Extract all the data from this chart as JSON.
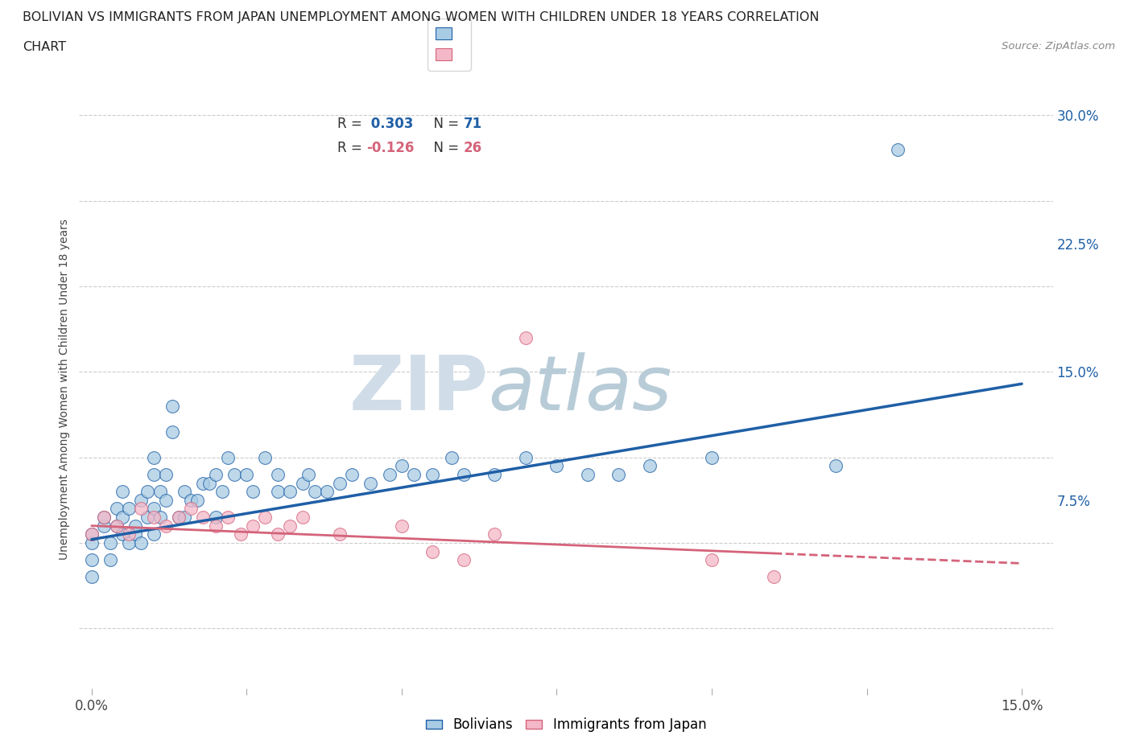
{
  "title_line1": "BOLIVIAN VS IMMIGRANTS FROM JAPAN UNEMPLOYMENT AMONG WOMEN WITH CHILDREN UNDER 18 YEARS CORRELATION",
  "title_line2": "CHART",
  "source": "Source: ZipAtlas.com",
  "ylabel": "Unemployment Among Women with Children Under 18 years",
  "xlim": [
    -0.002,
    0.155
  ],
  "ylim": [
    -0.035,
    0.315
  ],
  "xtick_positions": [
    0.0,
    0.025,
    0.05,
    0.075,
    0.1,
    0.125,
    0.15
  ],
  "xticklabels": [
    "0.0%",
    "",
    "",
    "",
    "",
    "",
    "15.0%"
  ],
  "ytick_positions": [
    0.0,
    0.075,
    0.15,
    0.225,
    0.3
  ],
  "ytick_labels": [
    "",
    "7.5%",
    "15.0%",
    "22.5%",
    "30.0%"
  ],
  "bolivians_R": 0.303,
  "bolivians_N": 71,
  "japan_R": -0.126,
  "japan_N": 26,
  "blue_color": "#a8cce4",
  "blue_line_color": "#1f5fa6",
  "pink_color": "#f4b8c8",
  "pink_line_color": "#d4637a",
  "watermark_zip": "ZIP",
  "watermark_atlas": "atlas",
  "grid_color": "#cccccc",
  "blue_trend_x0": 0.0,
  "blue_trend_y0": 0.052,
  "blue_trend_x1": 0.15,
  "blue_trend_y1": 0.143,
  "pink_trend_x0": 0.0,
  "pink_trend_y0": 0.06,
  "pink_trend_x1": 0.15,
  "pink_trend_y1": 0.038,
  "bolivians_x": [
    0.0,
    0.0,
    0.0,
    0.0,
    0.002,
    0.002,
    0.003,
    0.003,
    0.004,
    0.004,
    0.005,
    0.005,
    0.005,
    0.006,
    0.006,
    0.007,
    0.007,
    0.008,
    0.008,
    0.009,
    0.009,
    0.01,
    0.01,
    0.01,
    0.01,
    0.011,
    0.011,
    0.012,
    0.012,
    0.013,
    0.013,
    0.014,
    0.015,
    0.015,
    0.016,
    0.017,
    0.018,
    0.019,
    0.02,
    0.02,
    0.021,
    0.022,
    0.023,
    0.025,
    0.026,
    0.028,
    0.03,
    0.03,
    0.032,
    0.034,
    0.035,
    0.036,
    0.038,
    0.04,
    0.042,
    0.045,
    0.048,
    0.05,
    0.052,
    0.055,
    0.058,
    0.06,
    0.065,
    0.07,
    0.075,
    0.08,
    0.085,
    0.09,
    0.1,
    0.12,
    0.13
  ],
  "bolivians_y": [
    0.04,
    0.03,
    0.05,
    0.055,
    0.06,
    0.065,
    0.05,
    0.04,
    0.07,
    0.06,
    0.055,
    0.065,
    0.08,
    0.05,
    0.07,
    0.055,
    0.06,
    0.075,
    0.05,
    0.065,
    0.08,
    0.055,
    0.07,
    0.09,
    0.1,
    0.065,
    0.08,
    0.09,
    0.075,
    0.115,
    0.13,
    0.065,
    0.065,
    0.08,
    0.075,
    0.075,
    0.085,
    0.085,
    0.065,
    0.09,
    0.08,
    0.1,
    0.09,
    0.09,
    0.08,
    0.1,
    0.08,
    0.09,
    0.08,
    0.085,
    0.09,
    0.08,
    0.08,
    0.085,
    0.09,
    0.085,
    0.09,
    0.095,
    0.09,
    0.09,
    0.1,
    0.09,
    0.09,
    0.1,
    0.095,
    0.09,
    0.09,
    0.095,
    0.1,
    0.095,
    0.28
  ],
  "japan_x": [
    0.0,
    0.002,
    0.004,
    0.006,
    0.008,
    0.01,
    0.012,
    0.014,
    0.016,
    0.018,
    0.02,
    0.022,
    0.024,
    0.026,
    0.028,
    0.03,
    0.032,
    0.034,
    0.04,
    0.05,
    0.055,
    0.06,
    0.065,
    0.07,
    0.1,
    0.11
  ],
  "japan_y": [
    0.055,
    0.065,
    0.06,
    0.055,
    0.07,
    0.065,
    0.06,
    0.065,
    0.07,
    0.065,
    0.06,
    0.065,
    0.055,
    0.06,
    0.065,
    0.055,
    0.06,
    0.065,
    0.055,
    0.06,
    0.045,
    0.04,
    0.055,
    0.17,
    0.04,
    0.03
  ]
}
